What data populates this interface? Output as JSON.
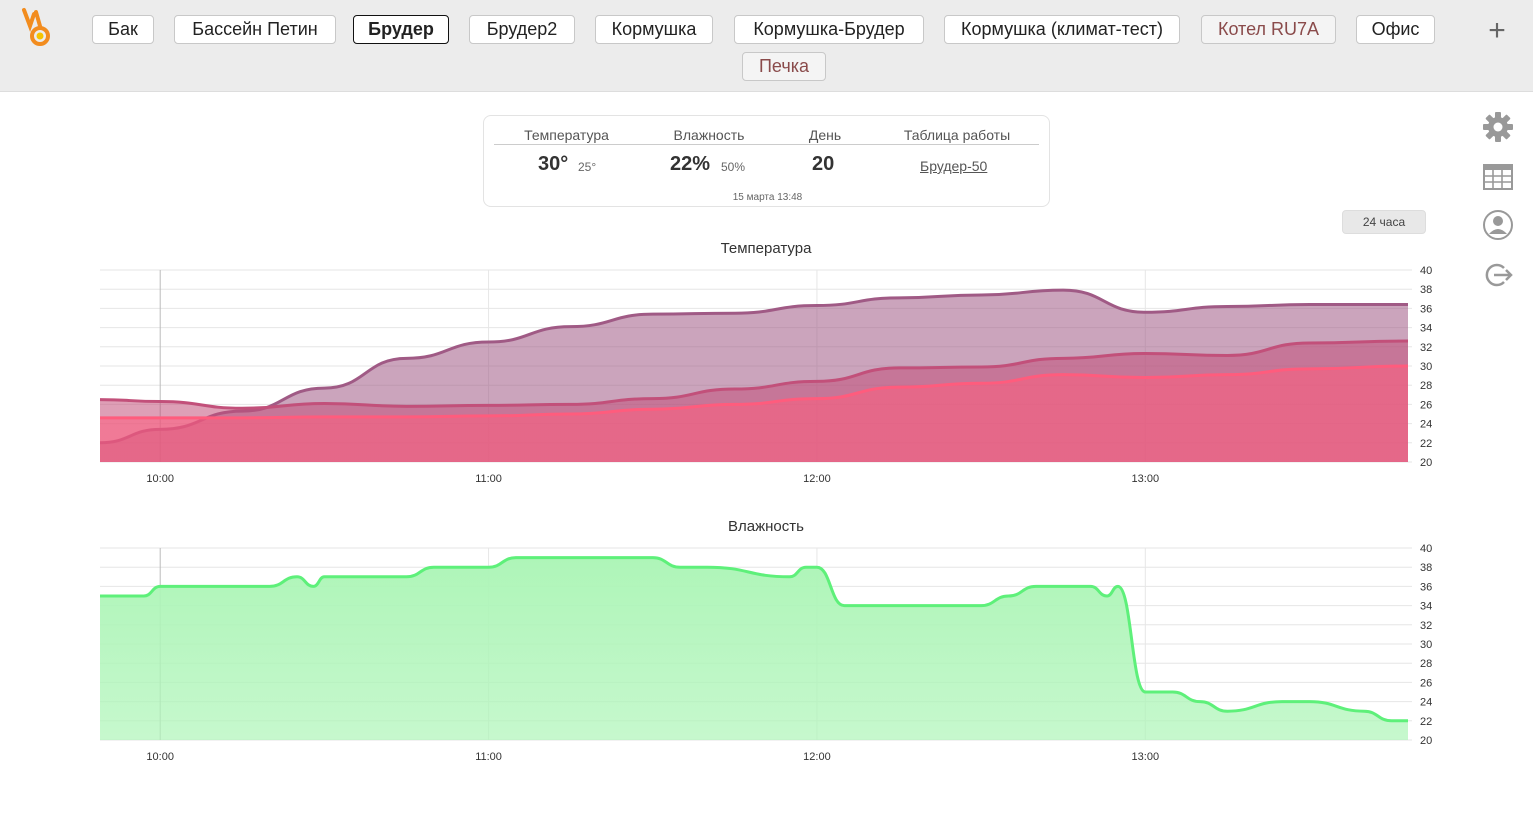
{
  "tabs": [
    {
      "label": "Бак",
      "state": "normal"
    },
    {
      "label": "Бассейн Петин",
      "state": "normal"
    },
    {
      "label": "Брудер",
      "state": "active"
    },
    {
      "label": "Брудер2",
      "state": "normal"
    },
    {
      "label": "Кормушка",
      "state": "normal"
    },
    {
      "label": "Кормушка-Брудер",
      "state": "normal"
    },
    {
      "label": "Кормушка (климат-тест)",
      "state": "normal"
    },
    {
      "label": "Котел RU7A",
      "state": "muted"
    },
    {
      "label": "Офис",
      "state": "normal"
    },
    {
      "label": "Печка",
      "state": "muted"
    }
  ],
  "add_tab_label": "+",
  "info": {
    "temp_header": "Температура",
    "hum_header": "Влажность",
    "day_header": "День",
    "table_header": "Таблица работы",
    "temp_value": "30°",
    "temp_target": "25°",
    "hum_value": "22%",
    "hum_target": "50%",
    "day_value": "20",
    "table_link": "Брудер-50",
    "timestamp": "15 марта 13:48"
  },
  "period_button": "24 часа",
  "side_icons": [
    "gear-icon",
    "table-icon",
    "user-icon",
    "logout-icon"
  ],
  "colors": {
    "temp_outer": "#a05a85",
    "temp_mid": "#c2507a",
    "temp_inner": "#ff5c7d",
    "humidity": "#5ef07a",
    "humidity_fill": "#aef5b8"
  },
  "chart_data": [
    {
      "type": "area",
      "title": "Температура",
      "x_ticks": [
        "10:00",
        "11:00",
        "12:00",
        "13:00"
      ],
      "x_range": [
        "09:49",
        "13:48"
      ],
      "ylim": [
        20,
        40
      ],
      "y_ticks": [
        20,
        22,
        24,
        26,
        28,
        30,
        32,
        34,
        36,
        38,
        40
      ],
      "grid": true,
      "x": [
        "09:49",
        "10:00",
        "10:15",
        "10:30",
        "10:45",
        "11:00",
        "11:15",
        "11:30",
        "11:45",
        "12:00",
        "12:15",
        "12:30",
        "12:45",
        "13:00",
        "13:15",
        "13:30",
        "13:48"
      ],
      "series": [
        {
          "values": [
            22,
            23.4,
            25.3,
            27.7,
            30.8,
            32.5,
            34.1,
            35.4,
            35.5,
            36.3,
            37.1,
            37.4,
            37.9,
            35.6,
            36.2,
            36.4,
            36.4
          ]
        },
        {
          "values": [
            26.5,
            26.3,
            25.6,
            26.1,
            25.8,
            25.9,
            26.0,
            26.6,
            27.6,
            28.4,
            29.8,
            29.9,
            30.8,
            31.3,
            31.1,
            32.4,
            32.6
          ]
        },
        {
          "values": [
            24.6,
            24.6,
            24.6,
            24.7,
            24.7,
            24.8,
            25.0,
            25.5,
            26.0,
            26.6,
            27.8,
            28.2,
            29.1,
            28.8,
            29.1,
            29.7,
            30.0
          ]
        }
      ]
    },
    {
      "type": "area",
      "title": "Влажность",
      "x_ticks": [
        "10:00",
        "11:00",
        "12:00",
        "13:00"
      ],
      "x_range": [
        "09:49",
        "13:48"
      ],
      "ylim": [
        20,
        40
      ],
      "y_ticks": [
        20,
        22,
        24,
        26,
        28,
        30,
        32,
        34,
        36,
        38,
        40
      ],
      "grid": true,
      "x": [
        "09:49",
        "09:57",
        "10:00",
        "10:20",
        "10:25",
        "10:28",
        "10:30",
        "10:45",
        "10:50",
        "11:00",
        "11:05",
        "11:30",
        "11:35",
        "11:40",
        "11:55",
        "11:58",
        "12:00",
        "12:05",
        "12:15",
        "12:20",
        "12:30",
        "12:35",
        "12:40",
        "12:50",
        "12:53",
        "12:55",
        "13:00",
        "13:05",
        "13:10",
        "13:15",
        "13:25",
        "13:30",
        "13:40",
        "13:45",
        "13:48"
      ],
      "series": [
        {
          "values": [
            35,
            35,
            36,
            36,
            37,
            36,
            37,
            37,
            38,
            38,
            39,
            39,
            38,
            38,
            37,
            38,
            38,
            34,
            34,
            34,
            34,
            35,
            36,
            36,
            35,
            36,
            25,
            25,
            24,
            23,
            24,
            24,
            23,
            22,
            22
          ]
        }
      ]
    }
  ]
}
